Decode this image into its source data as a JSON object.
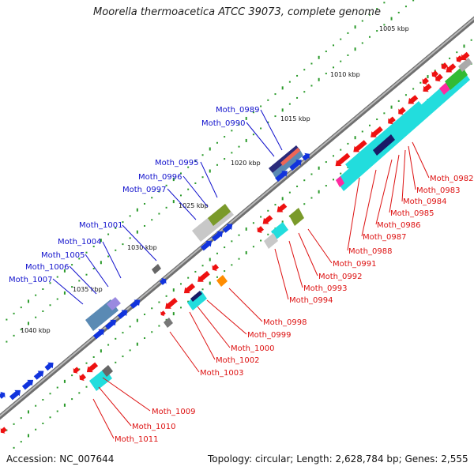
{
  "title": "Moorella thermoacetica ATCC 39073, complete genome",
  "accession_text": "Accession: NC_007644",
  "summary_text": "Topology: circular; Length: 2,628,784 bp; Genes: 2,555",
  "colors": {
    "backbone": "#8a8a8a",
    "tick_dots": "#2a9a2a",
    "gene_label_blue": "#1111cc",
    "gene_label_red": "#dd1111",
    "cds_forward": "#1133dd",
    "cds_reverse": "#ee1111",
    "cog_cyan": "#22dddd",
    "cog_slate": "#5a8ab4",
    "cog_olive": "#7a9a2a",
    "cog_orange": "#ff8c00",
    "cog_navy": "#1a1a66",
    "cog_magenta": "#ff2aa0",
    "cog_green": "#33bb33",
    "cog_gray": "#aaaaaa",
    "cog_violet": "#9a8ae0",
    "cog_salmon": "#ee6655"
  },
  "kbp_marks": [
    "1005 kbp",
    "1010 kbp",
    "1015 kbp",
    "1020 kbp",
    "1025 kbp",
    "1030 kbp",
    "1035 kbp",
    "1040 kbp"
  ],
  "forward_genes": [
    "Moth_0989",
    "Moth_0990",
    "Moth_0995",
    "Moth_0996",
    "Moth_0997",
    "Moth_1001",
    "Moth_1004",
    "Moth_1005",
    "Moth_1006",
    "Moth_1007"
  ],
  "reverse_genes": [
    "Moth_0982",
    "Moth_0983",
    "Moth_0984",
    "Moth_0985",
    "Moth_0986",
    "Moth_0987",
    "Moth_0988",
    "Moth_0991",
    "Moth_0992",
    "Moth_0993",
    "Moth_0994",
    "Moth_0998",
    "Moth_0999",
    "Moth_1000",
    "Moth_1002",
    "Moth_1003",
    "Moth_1009",
    "Moth_1010",
    "Moth_1011"
  ]
}
